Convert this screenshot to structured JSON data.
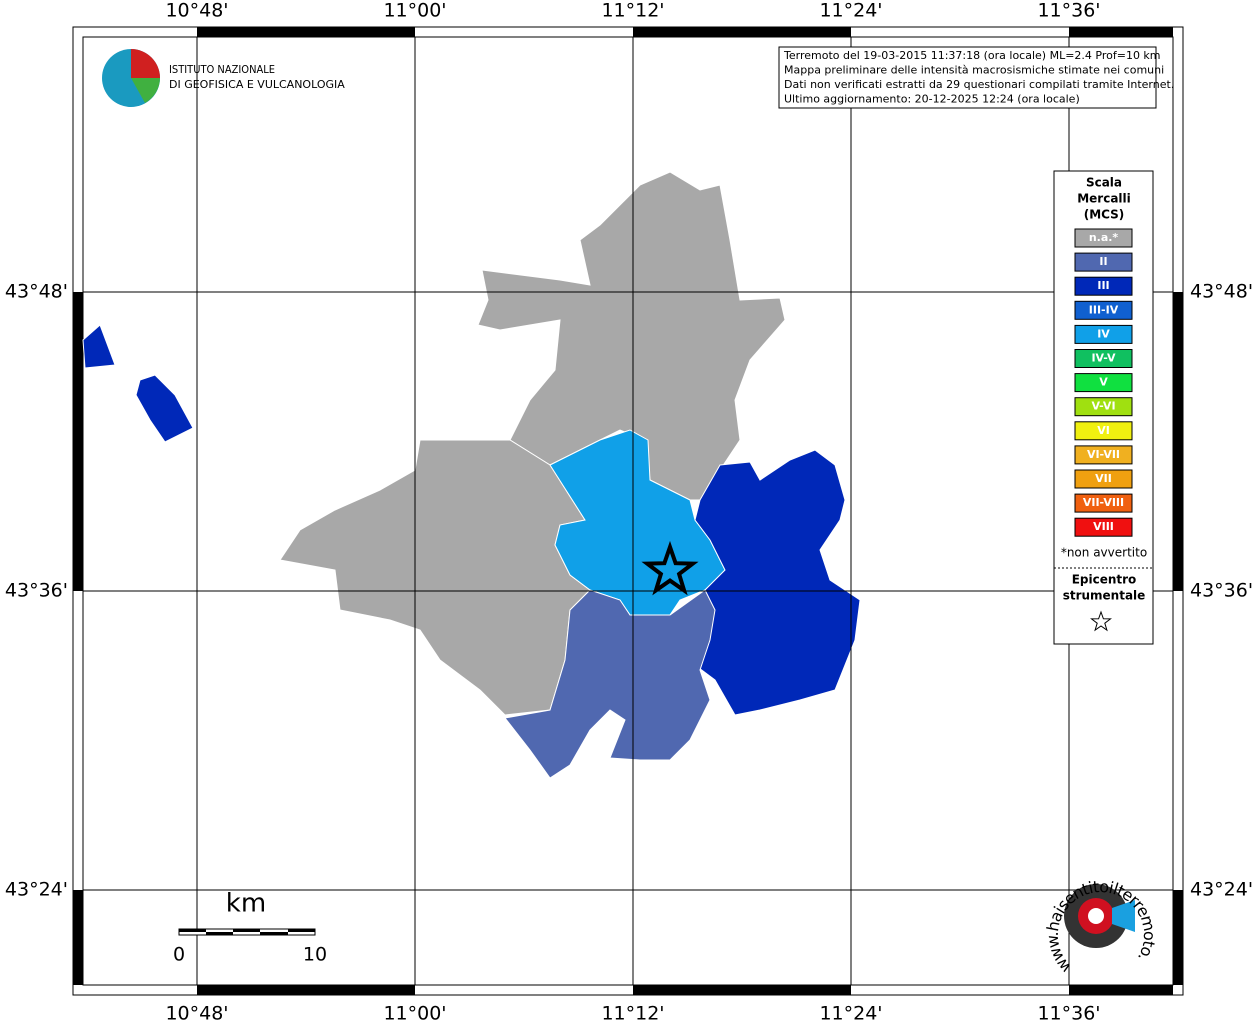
{
  "map": {
    "x_labels": [
      "10°48'",
      "11°00'",
      "11°12'",
      "11°24'",
      "11°36'"
    ],
    "y_labels": [
      "43°48'",
      "43°36'",
      "43°24'"
    ],
    "logo": {
      "line1": "ISTITUTO NAZIONALE",
      "line2": "DI GEOFISICA E VULCANOLOGIA"
    },
    "info": [
      "Terremoto del 19-03-2015 11:37:18 (ora locale) ML=2.4 Prof=10 km",
      "Mappa preliminare delle intensità macrosismiche stimate nei comuni",
      "Dati non verificati estratti da 29 questionari compilati tramite Internet.",
      "Ultimo aggiornamento: 20-12-2025 12:24 (ora locale)"
    ],
    "legend": {
      "title": [
        "Scala",
        "Mercalli",
        "(MCS)"
      ],
      "items": [
        {
          "label": "n.a.*",
          "color": "#a8a8a8"
        },
        {
          "label": "II",
          "color": "#5068b0"
        },
        {
          "label": "III",
          "color": "#0028b8"
        },
        {
          "label": "III-IV",
          "color": "#1060d0"
        },
        {
          "label": "IV",
          "color": "#10a0e8"
        },
        {
          "label": "IV-V",
          "color": "#10c060"
        },
        {
          "label": "V",
          "color": "#10e040"
        },
        {
          "label": "V-VI",
          "color": "#a0e010"
        },
        {
          "label": "VI",
          "color": "#f0f010"
        },
        {
          "label": "VI-VII",
          "color": "#f0b020"
        },
        {
          "label": "VII",
          "color": "#f0a010"
        },
        {
          "label": "VII-VIII",
          "color": "#f06010"
        },
        {
          "label": "VIII",
          "color": "#f01010"
        }
      ],
      "note": "*non avvertito",
      "epicenter": [
        "Epicentro",
        "strumentale"
      ]
    },
    "scale": {
      "unit": "km",
      "start": "0",
      "end": "10"
    },
    "site": "www.haisentitoilterremoto.it"
  }
}
